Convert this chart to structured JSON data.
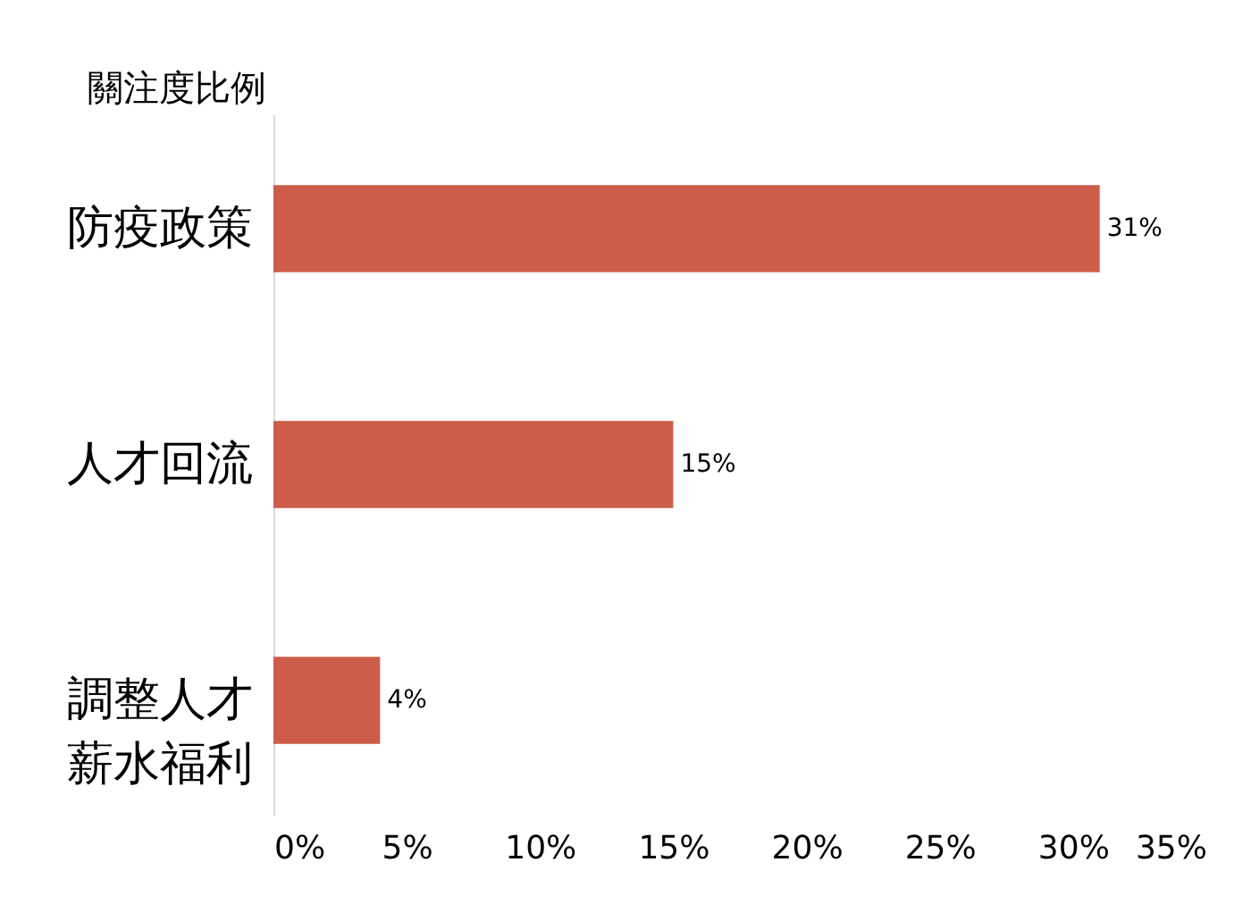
{
  "chart_data": {
    "type": "bar",
    "orientation": "horizontal",
    "title": "關注度比例",
    "categories": [
      "防疫政策",
      "人才回流",
      "調整人才薪水福利"
    ],
    "values": [
      31,
      15,
      4
    ],
    "value_labels": [
      "31%",
      "15%",
      "4%"
    ],
    "color": "#cd5c4a",
    "xlim": [
      0,
      35
    ],
    "xticks": [
      {
        "value": 0,
        "label": "0%"
      },
      {
        "value": 5,
        "label": "5%"
      },
      {
        "value": 10,
        "label": "10%"
      },
      {
        "value": 15,
        "label": "15%"
      },
      {
        "value": 20,
        "label": "20%"
      },
      {
        "value": 25,
        "label": "25%"
      },
      {
        "value": 30,
        "label": "30%"
      },
      {
        "value": 35,
        "label": "35%"
      }
    ],
    "grid": false
  }
}
